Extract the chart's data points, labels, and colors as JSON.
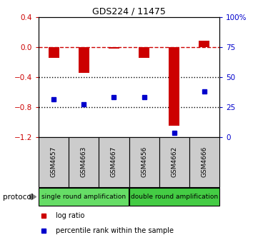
{
  "title": "GDS224 / 11475",
  "samples": [
    "GSM4657",
    "GSM4663",
    "GSM4667",
    "GSM4656",
    "GSM4662",
    "GSM4666"
  ],
  "log_ratio": [
    -0.15,
    -0.35,
    -0.02,
    -0.15,
    -1.05,
    0.08
  ],
  "percentile_rank": [
    31,
    27,
    33,
    33,
    3,
    38
  ],
  "protocol_groups": [
    {
      "label": "single round amplification",
      "color": "#66dd66"
    },
    {
      "label": "double round amplification",
      "color": "#44cc44"
    }
  ],
  "left_ylim": [
    -1.2,
    0.4
  ],
  "right_ylim": [
    0,
    100
  ],
  "left_yticks": [
    -1.2,
    -0.8,
    -0.4,
    0.0,
    0.4
  ],
  "right_yticks": [
    0,
    25,
    50,
    75,
    100
  ],
  "right_yticklabels": [
    "0",
    "25",
    "50",
    "75",
    "100%"
  ],
  "bar_color": "#cc0000",
  "dot_color": "#0000cc",
  "hline_color": "#cc0000",
  "dotted_color": "#000000",
  "box_color": "#cccccc",
  "protocol_label": "protocol",
  "legend_bar_label": "log ratio",
  "legend_dot_label": "percentile rank within the sample",
  "bar_width": 0.35
}
